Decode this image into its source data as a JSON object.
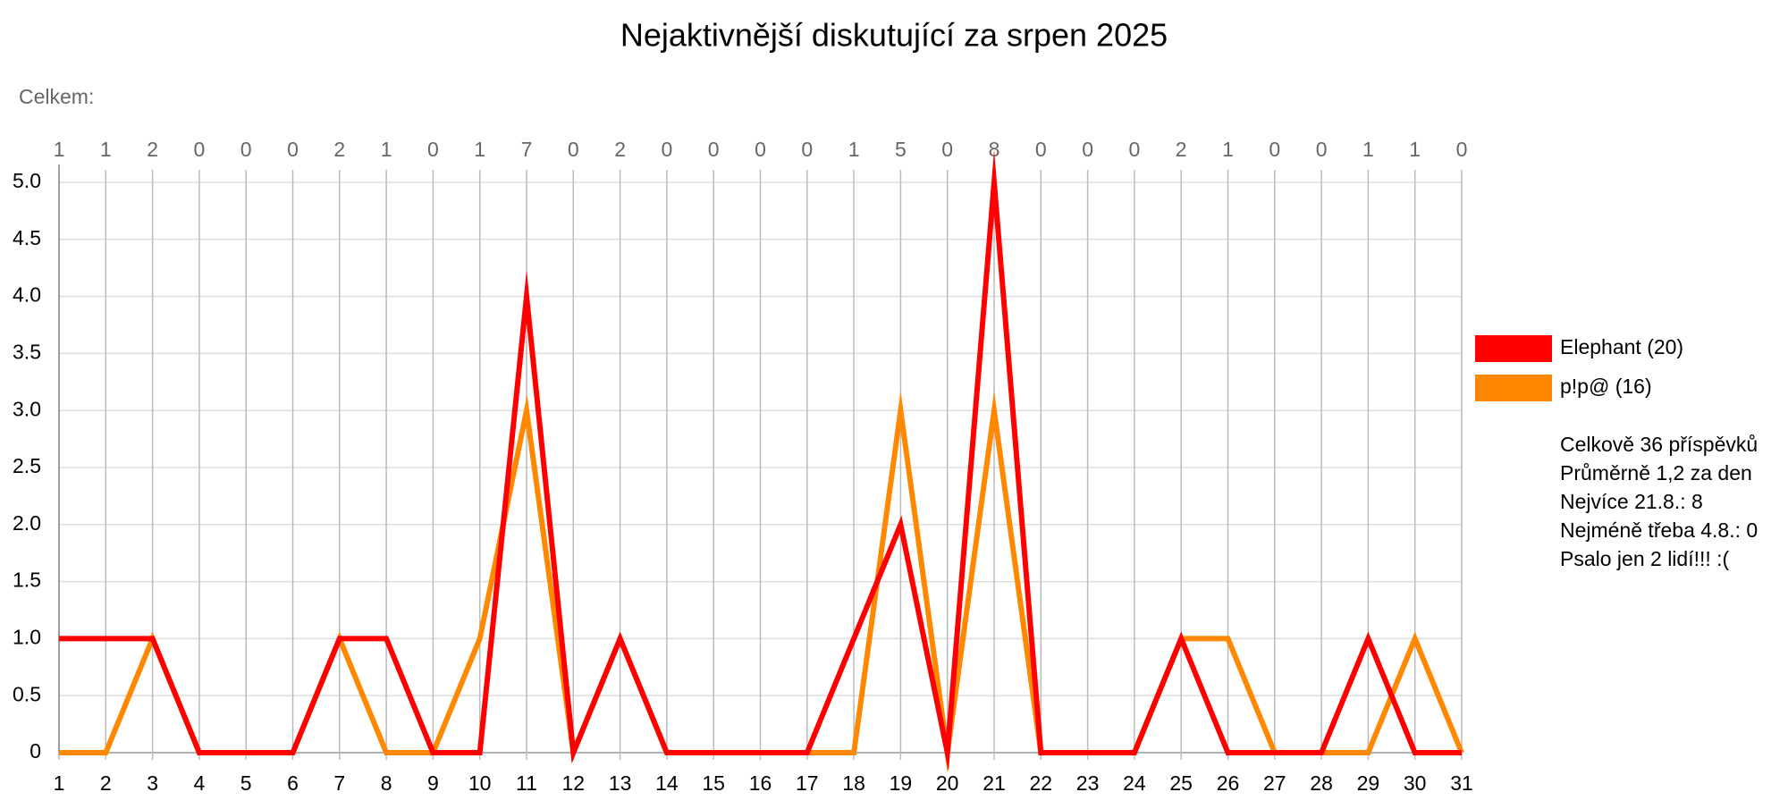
{
  "chart_data": {
    "type": "line",
    "title": "Nejaktivnější diskutující za srpen 2025",
    "subtitle": "Celkem:",
    "x": [
      1,
      2,
      3,
      4,
      5,
      6,
      7,
      8,
      9,
      10,
      11,
      12,
      13,
      14,
      15,
      16,
      17,
      18,
      19,
      20,
      21,
      22,
      23,
      24,
      25,
      26,
      27,
      28,
      29,
      30,
      31
    ],
    "daily_totals": [
      1,
      1,
      2,
      0,
      0,
      0,
      2,
      1,
      0,
      1,
      7,
      0,
      2,
      0,
      0,
      0,
      0,
      1,
      5,
      0,
      8,
      0,
      0,
      0,
      2,
      1,
      0,
      0,
      1,
      1,
      0
    ],
    "series": [
      {
        "name": "Elephant (20)",
        "color": "#ff0000",
        "values": [
          1,
          1,
          1,
          0,
          0,
          0,
          1,
          1,
          0,
          0,
          4,
          0,
          1,
          0,
          0,
          0,
          0,
          1,
          2,
          0,
          5,
          0,
          0,
          0,
          1,
          0,
          0,
          0,
          1,
          0,
          0
        ]
      },
      {
        "name": "p!p@ (16)",
        "color": "#ff8800",
        "values": [
          0,
          0,
          1,
          0,
          0,
          0,
          1,
          0,
          0,
          1,
          3,
          0,
          1,
          0,
          0,
          0,
          0,
          0,
          3,
          0,
          3,
          0,
          0,
          0,
          1,
          1,
          0,
          0,
          0,
          1,
          0
        ]
      }
    ],
    "xlim": [
      1,
      31
    ],
    "xticks": [
      1,
      2,
      3,
      4,
      5,
      6,
      7,
      8,
      9,
      10,
      11,
      12,
      13,
      14,
      15,
      16,
      17,
      18,
      19,
      20,
      21,
      22,
      23,
      24,
      25,
      26,
      27,
      28,
      29,
      30,
      31
    ],
    "ylim": [
      0,
      5
    ],
    "yticks": [
      0,
      0.5,
      {
        "value": 1,
        "label": "1.0"
      },
      1.5,
      {
        "value": 2,
        "label": "2.0"
      },
      2.5,
      {
        "value": 3,
        "label": "3.0"
      },
      3.5,
      {
        "value": 4,
        "label": "4.0"
      },
      4.5,
      {
        "value": 5,
        "label": "5.0"
      }
    ],
    "grid": true,
    "legend": "right",
    "stats": [
      "Celkově 36 příspěvků",
      "Průměrně 1,2 za den",
      "Nejvíce 21.8.: 8",
      "Nejméně třeba 4.8.: 0",
      "Psalo jen 2 lidí!!! :("
    ]
  }
}
